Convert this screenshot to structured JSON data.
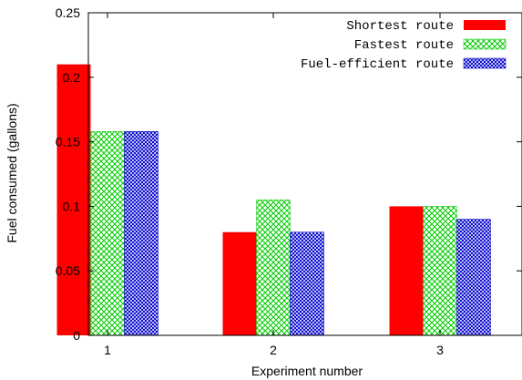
{
  "chart_data": {
    "type": "bar",
    "categories": [
      "1",
      "2",
      "3"
    ],
    "series": [
      {
        "name": "Shortest route",
        "values": [
          0.21,
          0.08,
          0.1
        ],
        "color": "#ff0000",
        "pattern": "solid"
      },
      {
        "name": "Fastest route",
        "values": [
          0.158,
          0.105,
          0.1
        ],
        "color": "#00cc00",
        "pattern": "crosshatch"
      },
      {
        "name": "Fuel-efficient route",
        "values": [
          0.158,
          0.08,
          0.09
        ],
        "color": "#0000cc",
        "pattern": "dense-crosshatch"
      }
    ],
    "xlabel": "Experiment number",
    "ylabel": "Fuel consumed (gallons)",
    "ylim": [
      0,
      0.25
    ],
    "yticks": [
      "0",
      "0.05",
      "0.1",
      "0.15",
      "0.2",
      "0.25"
    ],
    "ytick_values": [
      0,
      0.05,
      0.1,
      0.15,
      0.2,
      0.25
    ],
    "grid": false,
    "legend_position": "top-right"
  }
}
